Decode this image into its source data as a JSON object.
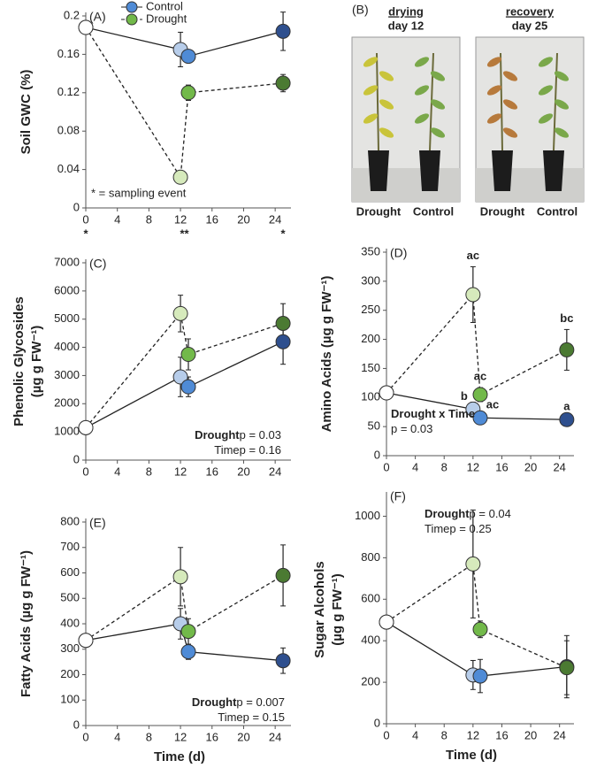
{
  "chart_data": [
    {
      "type": "line",
      "panel": "(A)",
      "ylabel": [
        "Soil GWC (%)"
      ],
      "x": [
        0,
        12,
        13,
        25
      ],
      "xlim": [
        0,
        26
      ],
      "xticks": [
        0,
        4,
        8,
        12,
        16,
        20,
        24
      ],
      "ylim": [
        0,
        0.2
      ],
      "yticks": [
        0,
        0.04,
        0.08,
        0.12,
        0.16,
        0.2
      ],
      "legend": "top",
      "series": [
        {
          "name": "Control",
          "color": "#4f8bd6",
          "dash": false,
          "values": [
            0.188,
            0.165,
            0.158,
            0.184
          ],
          "errors": [
            null,
            0.018,
            null,
            0.02
          ],
          "point_colors": [
            "#ffffff",
            "#b7cdea",
            "#4f8bd6",
            "#2e4f8e"
          ]
        },
        {
          "name": "Drought",
          "color": "#72b94a",
          "dash": true,
          "values": [
            0.188,
            0.032,
            0.12,
            0.13
          ],
          "errors": [
            null,
            null,
            0.008,
            0.009
          ],
          "point_colors": [
            "#ffffff",
            "#d6eabc",
            "#72b94a",
            "#4b7a32"
          ]
        }
      ],
      "annotation": "* = sampling event",
      "sampling_marks": [
        {
          "x": 0,
          "label": "*"
        },
        {
          "x": 12.5,
          "label": "**"
        },
        {
          "x": 25,
          "label": "*"
        }
      ]
    },
    {
      "type": "photo",
      "panel": "(B)",
      "photos": [
        {
          "title": "drying",
          "subtitle": "day 12",
          "labels": [
            {
              "text": "Drought",
              "color": "#7dbb45"
            },
            {
              "text": "Control",
              "color": "#4f8bd6"
            }
          ]
        },
        {
          "title": "recovery",
          "subtitle": "day 25",
          "labels": [
            {
              "text": "Drought",
              "color": "#4b7a32"
            },
            {
              "text": "Control",
              "color": "#2e4f8e"
            }
          ]
        }
      ]
    },
    {
      "type": "line",
      "panel": "(C)",
      "ylabel": [
        "Phenolic Glycosides",
        "(µg g FW⁻¹)"
      ],
      "x": [
        0,
        12,
        13,
        25
      ],
      "xlim": [
        0,
        26
      ],
      "xticks": [
        0,
        4,
        8,
        12,
        16,
        20,
        24
      ],
      "ylim": [
        0,
        7000
      ],
      "yticks": [
        0,
        1000,
        2000,
        3000,
        4000,
        5000,
        6000,
        7000
      ],
      "series": [
        {
          "name": "Control",
          "color": "#4f8bd6",
          "dash": false,
          "values": [
            1150,
            2950,
            2600,
            4200
          ],
          "errors": [
            null,
            700,
            350,
            800
          ],
          "point_colors": [
            "#ffffff",
            "#b7cdea",
            "#4f8bd6",
            "#2e4f8e"
          ]
        },
        {
          "name": "Drought",
          "color": "#72b94a",
          "dash": true,
          "values": [
            1150,
            5200,
            3750,
            4850
          ],
          "errors": [
            null,
            650,
            550,
            700
          ],
          "point_colors": [
            "#ffffff",
            "#d6eabc",
            "#72b94a",
            "#4b7a32"
          ]
        }
      ],
      "stats": [
        {
          "term": "Drought",
          "text": "p = 0.03"
        },
        {
          "term": "Time",
          "text": "p = 0.16"
        }
      ]
    },
    {
      "type": "line",
      "panel": "(D)",
      "ylabel": [
        "Amino Acids (µg g FW⁻¹)"
      ],
      "x": [
        0,
        12,
        13,
        25
      ],
      "xlim": [
        0,
        26
      ],
      "xticks": [
        0,
        4,
        8,
        12,
        16,
        20,
        24
      ],
      "ylim": [
        0,
        350
      ],
      "yticks": [
        0,
        50,
        100,
        150,
        200,
        250,
        300,
        350
      ],
      "series": [
        {
          "name": "Control",
          "color": "#4f8bd6",
          "dash": false,
          "values": [
            108,
            80,
            65,
            62
          ],
          "errors": [
            null,
            12,
            8,
            6
          ],
          "point_colors": [
            "#ffffff",
            "#b7cdea",
            "#4f8bd6",
            "#2e4f8e"
          ],
          "letters": [
            null,
            "b",
            "ac",
            "a"
          ]
        },
        {
          "name": "Drought",
          "color": "#72b94a",
          "dash": true,
          "values": [
            108,
            277,
            105,
            182
          ],
          "errors": [
            null,
            48,
            12,
            35
          ],
          "point_colors": [
            "#ffffff",
            "#d6eabc",
            "#72b94a",
            "#4b7a32"
          ],
          "letters": [
            null,
            "ac",
            "ac",
            "bc"
          ]
        }
      ],
      "stats": [
        {
          "term": "Drought x Time"
        },
        {
          "text": "p = 0.03"
        }
      ]
    },
    {
      "type": "line",
      "panel": "(E)",
      "ylabel": [
        "Fatty Acids (µg g FW⁻¹)"
      ],
      "xlabel": "Time (d)",
      "x": [
        0,
        12,
        13,
        25
      ],
      "xlim": [
        0,
        26
      ],
      "xticks": [
        0,
        4,
        8,
        12,
        16,
        20,
        24
      ],
      "ylim": [
        0,
        800
      ],
      "yticks": [
        0,
        100,
        200,
        300,
        400,
        500,
        600,
        700,
        800
      ],
      "series": [
        {
          "name": "Control",
          "color": "#4f8bd6",
          "dash": false,
          "values": [
            335,
            400,
            290,
            255
          ],
          "errors": [
            null,
            60,
            30,
            50
          ],
          "point_colors": [
            "#ffffff",
            "#b7cdea",
            "#4f8bd6",
            "#2e4f8e"
          ]
        },
        {
          "name": "Drought",
          "color": "#72b94a",
          "dash": true,
          "values": [
            335,
            585,
            370,
            590
          ],
          "errors": [
            null,
            115,
            50,
            120
          ],
          "point_colors": [
            "#ffffff",
            "#d6eabc",
            "#72b94a",
            "#4b7a32"
          ]
        }
      ],
      "stats": [
        {
          "term": "Drought",
          "text": "p = 0.007"
        },
        {
          "term": "Time",
          "text": "p = 0.15"
        }
      ]
    },
    {
      "type": "line",
      "panel": "(F)",
      "ylabel": [
        "Sugar Alcohols",
        "(µg g FW⁻¹)"
      ],
      "xlabel": "Time (d)",
      "x": [
        0,
        12,
        13,
        25
      ],
      "xlim": [
        0,
        26
      ],
      "xticks": [
        0,
        4,
        8,
        12,
        16,
        20,
        24
      ],
      "ylim": [
        0,
        1100
      ],
      "yticks": [
        0,
        200,
        400,
        600,
        800,
        1000
      ],
      "series": [
        {
          "name": "Control",
          "color": "#4f8bd6",
          "dash": false,
          "values": [
            490,
            235,
            230,
            275
          ],
          "errors": [
            null,
            70,
            80,
            150
          ],
          "point_colors": [
            "#ffffff",
            "#b7cdea",
            "#4f8bd6",
            "#2e4f8e"
          ]
        },
        {
          "name": "Drought",
          "color": "#72b94a",
          "dash": true,
          "values": [
            490,
            770,
            455,
            270
          ],
          "errors": [
            null,
            260,
            40,
            130
          ],
          "point_colors": [
            "#ffffff",
            "#d6eabc",
            "#72b94a",
            "#4b7a32"
          ]
        }
      ],
      "stats": [
        {
          "term": "Drought",
          "text": "p = 0.04"
        },
        {
          "term": "Time",
          "text": "p = 0.25"
        }
      ]
    }
  ]
}
